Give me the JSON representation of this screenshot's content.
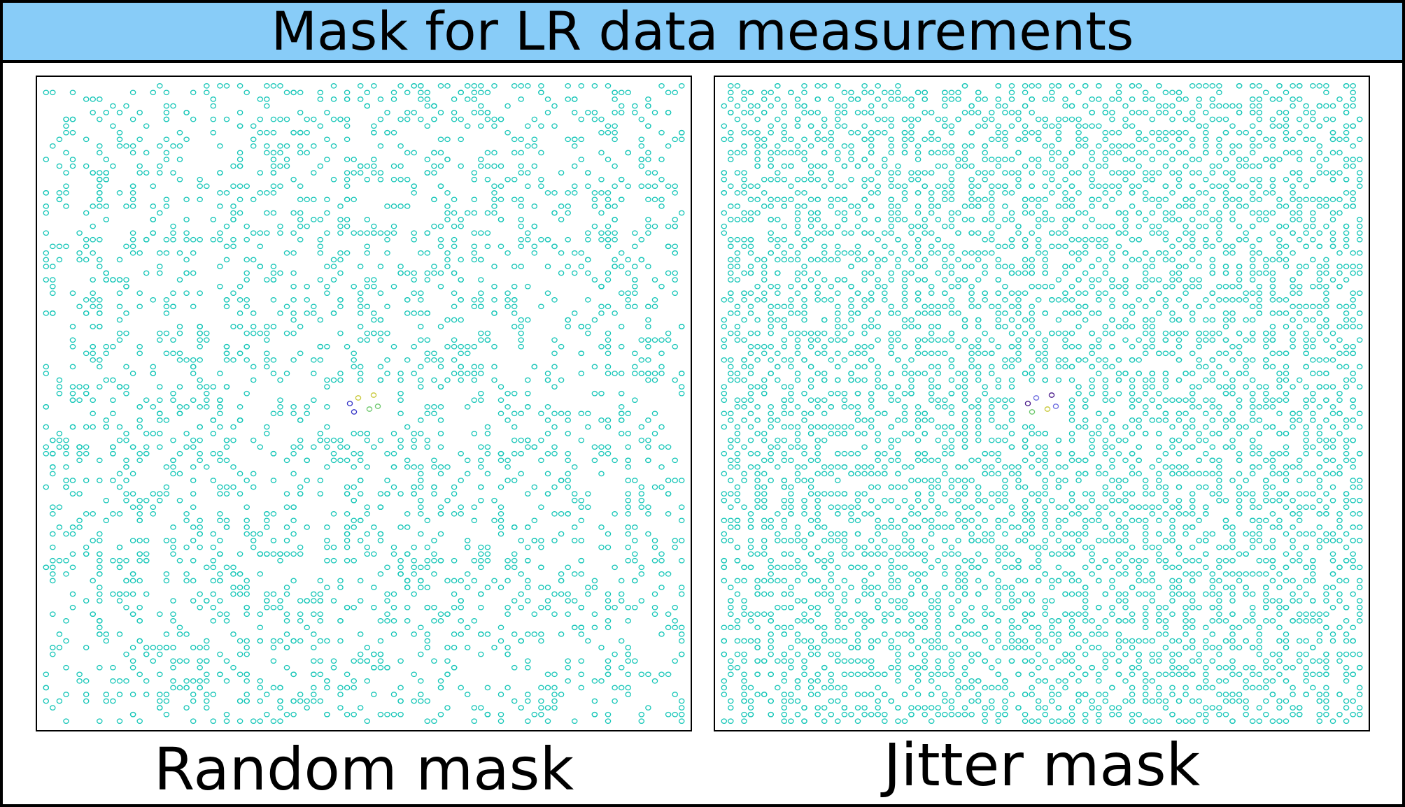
{
  "title": "Mask for LR data measurements",
  "panels": [
    {
      "caption": "Random mask",
      "pattern": "random",
      "marker_color": "#17c6b8",
      "center_marker_colors": [
        "#3838c8",
        "#c8c838",
        "#6cc86c"
      ]
    },
    {
      "caption": "Jitter mask",
      "pattern": "jitter",
      "marker_color": "#17c6b8",
      "center_marker_colors": [
        "#4a1a8a",
        "#6c6ce0",
        "#c8c838",
        "#6cc86c"
      ]
    }
  ]
}
